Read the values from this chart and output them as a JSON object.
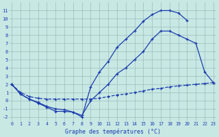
{
  "title": "Graphe des températures (°C)",
  "background_color": "#c8e8e4",
  "grid_color": "#9abcba",
  "line_color": "#1a3aad",
  "hours": [
    0,
    1,
    2,
    3,
    4,
    5,
    6,
    7,
    8,
    9,
    10,
    11,
    12,
    13,
    14,
    15,
    16,
    17,
    18,
    19,
    20,
    21,
    22,
    23
  ],
  "line_top": [
    2,
    0.8,
    0.2,
    -0.3,
    -0.8,
    -1.3,
    -1.3,
    -1.4,
    -2.0,
    1.7,
    3.5,
    4.8,
    6.5,
    7.5,
    8.5,
    9.7,
    10.5,
    11.0,
    11.0,
    10.7,
    9.8,
    null,
    null,
    null
  ],
  "line_mid": [
    2,
    0.8,
    0.2,
    -0.2,
    -0.7,
    -1.0,
    -1.1,
    -1.4,
    -1.8,
    0.0,
    1.0,
    2.0,
    3.3,
    4.0,
    5.0,
    6.0,
    7.5,
    8.5,
    8.5,
    8.0,
    7.5,
    7.0,
    3.5,
    2.2
  ],
  "line_low": [
    2,
    0.8,
    0.2,
    -0.3,
    -0.8,
    -1.3,
    -1.3,
    -1.4,
    -2.0,
    1.7,
    null,
    null,
    null,
    null,
    null,
    null,
    null,
    null,
    null,
    null,
    null,
    null,
    null,
    null
  ],
  "line_dash": [
    2,
    1.0,
    0.5,
    0.3,
    0.2,
    0.2,
    0.2,
    0.2,
    0.2,
    0.2,
    0.3,
    0.5,
    0.7,
    0.8,
    1.0,
    1.2,
    1.4,
    1.5,
    1.7,
    1.8,
    1.9,
    2.0,
    2.1,
    2.2
  ],
  "ylim": [
    -2.5,
    12.0
  ],
  "yticks": [
    -2,
    -1,
    0,
    1,
    2,
    3,
    4,
    5,
    6,
    7,
    8,
    9,
    10,
    11
  ],
  "xlim": [
    -0.3,
    23.3
  ]
}
